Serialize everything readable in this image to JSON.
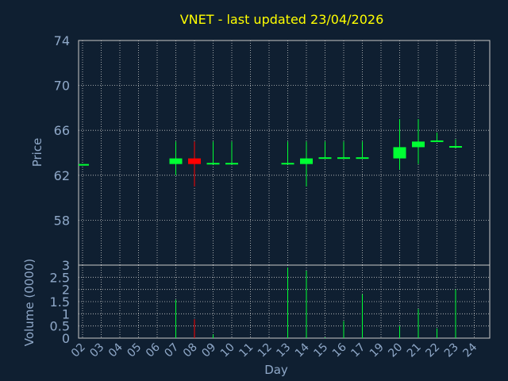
{
  "chart_data": {
    "type": "candlestick",
    "title": "VNET - last updated 23/04/2026",
    "price_panel": {
      "ylabel": "Price",
      "ylim": [
        54,
        74
      ],
      "yticks": [
        58,
        62,
        66,
        70,
        74
      ],
      "grid": true
    },
    "volume_panel": {
      "ylabel": "Volume (0000)",
      "ylim": [
        0,
        3
      ],
      "yticks": [
        "0",
        "0.5",
        "1",
        "1.5",
        "2",
        "2.5",
        "3"
      ],
      "grid": true
    },
    "xlabel": "Day",
    "x_ticks": [
      "02",
      "03",
      "04",
      "05",
      "06",
      "07",
      "08",
      "09",
      "10",
      "11",
      "12",
      "13",
      "14",
      "15",
      "16",
      "17",
      "19",
      "20",
      "21",
      "22",
      "23",
      "24"
    ],
    "colors": {
      "background": "#0f1f31",
      "axis_text": "#8fa8c8",
      "title": "#ffff00",
      "grid": "#c8c8c8",
      "up": "#00ff33",
      "down": "#ff0000"
    },
    "candles": [
      {
        "day": "02",
        "open": 63.0,
        "high": 63.0,
        "low": 63.0,
        "close": 63.0,
        "volume": 0.0
      },
      {
        "day": "07",
        "open": 63.0,
        "high": 65.0,
        "low": 62.0,
        "close": 63.5,
        "volume": 1.58
      },
      {
        "day": "08",
        "open": 63.5,
        "high": 65.0,
        "low": 61.0,
        "close": 63.0,
        "volume": 0.78
      },
      {
        "day": "09",
        "open": 63.0,
        "high": 65.0,
        "low": 63.0,
        "close": 63.1,
        "volume": 0.15
      },
      {
        "day": "10",
        "open": 63.0,
        "high": 65.0,
        "low": 63.0,
        "close": 63.1,
        "volume": 0.0
      },
      {
        "day": "13",
        "open": 63.0,
        "high": 65.0,
        "low": 63.0,
        "close": 63.1,
        "volume": 2.9
      },
      {
        "day": "14",
        "open": 63.0,
        "high": 65.0,
        "low": 61.0,
        "close": 63.5,
        "volume": 2.77
      },
      {
        "day": "15",
        "open": 63.5,
        "high": 65.0,
        "low": 63.5,
        "close": 63.6,
        "volume": 0.03
      },
      {
        "day": "16",
        "open": 63.5,
        "high": 65.0,
        "low": 63.5,
        "close": 63.6,
        "volume": 0.7
      },
      {
        "day": "17",
        "open": 63.5,
        "high": 65.0,
        "low": 63.5,
        "close": 63.6,
        "volume": 1.8
      },
      {
        "day": "20",
        "open": 63.5,
        "high": 67.0,
        "low": 62.5,
        "close": 64.5,
        "volume": 0.5
      },
      {
        "day": "21",
        "open": 64.5,
        "high": 67.0,
        "low": 63.0,
        "close": 65.0,
        "volume": 1.2
      },
      {
        "day": "22",
        "open": 65.0,
        "high": 65.8,
        "low": 65.0,
        "close": 65.1,
        "volume": 0.4
      },
      {
        "day": "23",
        "open": 64.5,
        "high": 65.2,
        "low": 64.5,
        "close": 64.6,
        "volume": 2.0
      }
    ]
  }
}
